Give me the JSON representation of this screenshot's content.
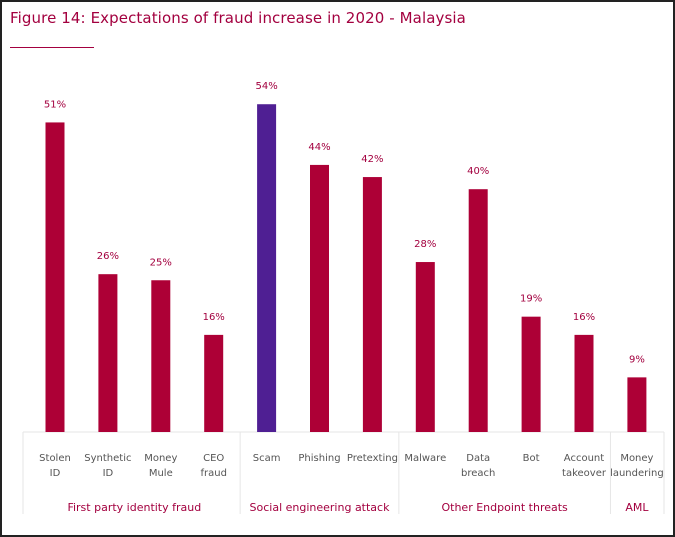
{
  "chart_data": {
    "type": "bar",
    "title": "Figure 14: Expectations of fraud increase in 2020 - Malaysia",
    "xlabel": "",
    "ylabel": "",
    "ylim": [
      0,
      60
    ],
    "grid": false,
    "legend": "none",
    "categories": [
      "Stolen ID",
      "Synthetic ID",
      "Money Mule",
      "CEO fraud",
      "Scam",
      "Phishing",
      "Pretexting",
      "Malware",
      "Data breach",
      "Bot",
      "Account takeover",
      "Money laundering"
    ],
    "category_lines": [
      [
        "Stolen",
        "ID"
      ],
      [
        "Synthetic",
        "ID"
      ],
      [
        "Money",
        "Mule"
      ],
      [
        "CEO",
        "fraud"
      ],
      [
        "Scam"
      ],
      [
        "Phishing"
      ],
      [
        "Pretexting"
      ],
      [
        "Malware"
      ],
      [
        "Data",
        "breach"
      ],
      [
        "Bot"
      ],
      [
        "Account",
        "takeover"
      ],
      [
        "Money",
        "laundering"
      ]
    ],
    "values": [
      51,
      26,
      25,
      16,
      54,
      44,
      42,
      28,
      40,
      19,
      16,
      9
    ],
    "value_labels": [
      "51%",
      "26%",
      "25%",
      "16%",
      "54%",
      "44%",
      "42%",
      "28%",
      "40%",
      "19%",
      "16%",
      "9%"
    ],
    "highlight_index": 4,
    "groups": [
      {
        "name": "First party identity fraud",
        "start": 0,
        "end": 3
      },
      {
        "name": "Social engineering attack",
        "start": 4,
        "end": 6
      },
      {
        "name": "Other Endpoint threats",
        "start": 7,
        "end": 10
      },
      {
        "name": "AML",
        "start": 11,
        "end": 11
      }
    ],
    "colors": {
      "bar": "#ad0036",
      "highlight": "#4f1f93",
      "label": "#a3003f",
      "category_text": "#555555"
    }
  }
}
